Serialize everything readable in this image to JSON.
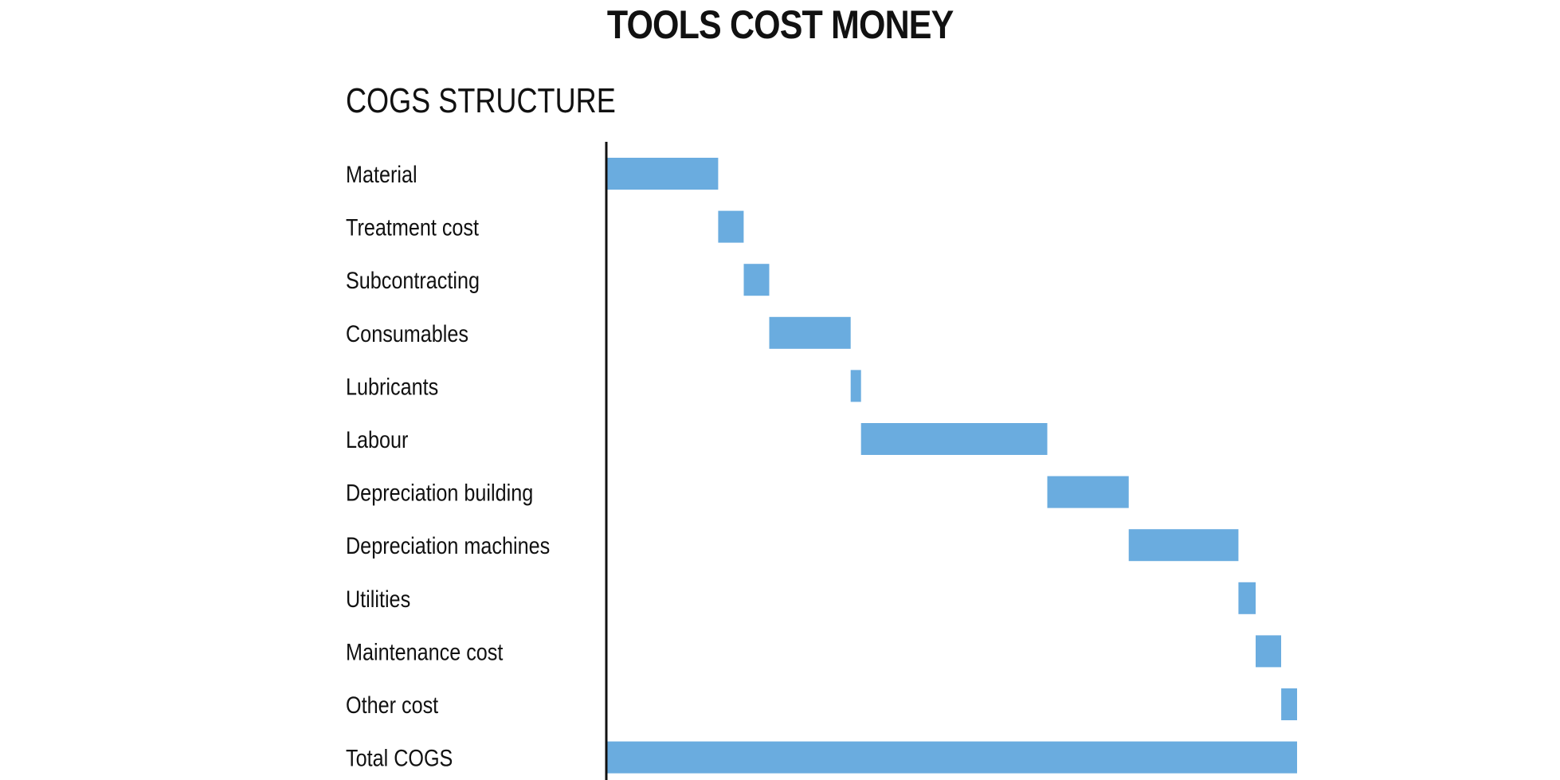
{
  "header": {
    "title": "TOOLS COST MONEY"
  },
  "chart_data": {
    "type": "bar",
    "subtype": "waterfall",
    "title": "COGS STRUCTURE",
    "xlabel": "",
    "ylabel": "",
    "orientation": "horizontal",
    "bar_color": "#6aacdf",
    "axis_color": "#111111",
    "grid": false,
    "legend": "none",
    "xlim": [
      0,
      100
    ],
    "categories": [
      "Material",
      "Treatment cost",
      "Subcontracting",
      "Consumables",
      "Lubricants",
      "Labour",
      "Depreciation building",
      "Depreciation machines",
      "Utilities",
      "Maintenance cost",
      "Other cost",
      "Total COGS"
    ],
    "values": [
      16.1,
      3.7,
      3.7,
      11.8,
      1.5,
      27.0,
      11.8,
      15.9,
      2.5,
      3.7,
      2.3,
      100.0
    ],
    "is_total": [
      false,
      false,
      false,
      false,
      false,
      false,
      false,
      false,
      false,
      false,
      false,
      true
    ]
  }
}
